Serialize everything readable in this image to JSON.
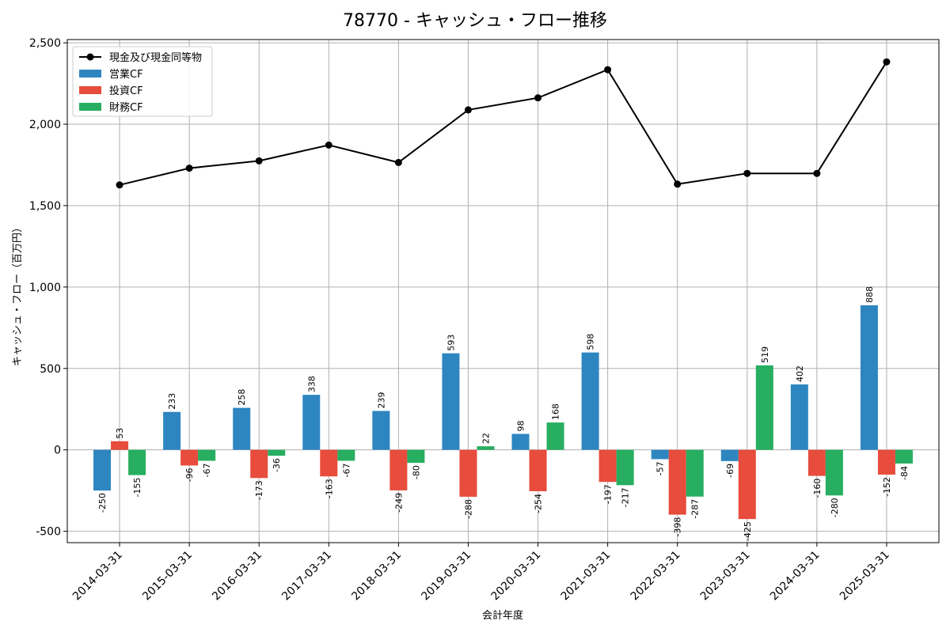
{
  "chart_data": {
    "type": "bar",
    "title": "78770 - キャッシュ・フロー推移",
    "xlabel": "会計年度",
    "ylabel": "キャッシュ・フロー（百万円）",
    "ylim": [
      -570,
      2520
    ],
    "yticks": [
      -500,
      0,
      500,
      1000,
      1500,
      2000,
      2500
    ],
    "ytick_labels": [
      "-500",
      "0",
      "500",
      "1,000",
      "1,500",
      "2,000",
      "2,500"
    ],
    "grid": true,
    "legend_position": "top-left",
    "categories": [
      "2014-03-31",
      "2015-03-31",
      "2016-03-31",
      "2017-03-31",
      "2018-03-31",
      "2019-03-31",
      "2020-03-31",
      "2021-03-31",
      "2022-03-31",
      "2023-03-31",
      "2024-03-31",
      "2025-03-31"
    ],
    "series": [
      {
        "name": "営業CF",
        "kind": "bar",
        "color": "#2e86c1",
        "values": [
          -250,
          233,
          258,
          338,
          239,
          593,
          98,
          598,
          -57,
          -69,
          402,
          888
        ],
        "labels": [
          "-250",
          "233",
          "258",
          "338",
          "239",
          "593",
          "98",
          "598",
          "-57",
          "-69",
          "402",
          "888"
        ]
      },
      {
        "name": "投資CF",
        "kind": "bar",
        "color": "#e74c3c",
        "values": [
          53,
          -96,
          -173,
          -163,
          -249,
          -288,
          -254,
          -197,
          -398,
          -425,
          -160,
          -152
        ],
        "labels": [
          "53",
          "-96",
          "-173",
          "-163",
          "-249",
          "-288",
          "-254",
          "-197",
          "-398",
          "-425",
          "-160",
          "-152"
        ]
      },
      {
        "name": "財務CF",
        "kind": "bar",
        "color": "#27ae60",
        "values": [
          -155,
          -67,
          -36,
          -67,
          -80,
          22,
          168,
          -217,
          -287,
          519,
          -280,
          -84
        ],
        "labels": [
          "-155",
          "-67",
          "-36",
          "-67",
          "-80",
          "22",
          "168",
          "-217",
          "-287",
          "519",
          "-280",
          "-84"
        ]
      },
      {
        "name": "現金及び現金同等物",
        "kind": "line",
        "color": "#000000",
        "values": [
          1627,
          1730,
          1775,
          1872,
          1765,
          2088,
          2162,
          2335,
          1632,
          1698,
          1698,
          2383
        ]
      }
    ]
  }
}
